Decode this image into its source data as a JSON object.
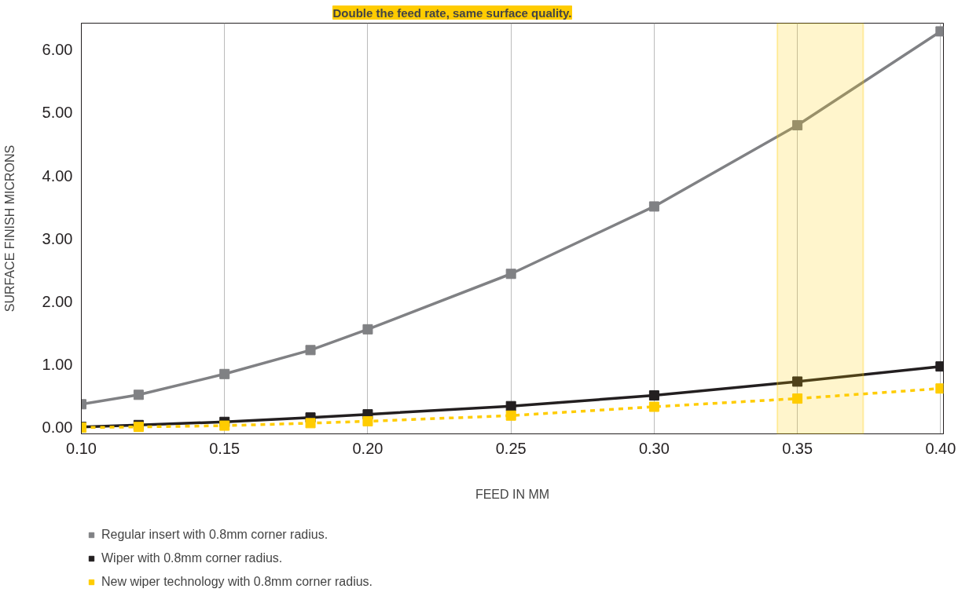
{
  "chart_data": {
    "type": "line",
    "xlabel": "FEED IN MM",
    "ylabel": "SURFACE FINISH MICRONS",
    "x": [
      0.1,
      0.12,
      0.15,
      0.18,
      0.2,
      0.25,
      0.3,
      0.35,
      0.4
    ],
    "series": [
      {
        "name": "Regular insert with 0.8mm corner radius.",
        "color": "#808184",
        "line_style": "solid",
        "values": [
          0.37,
          0.52,
          0.85,
          1.23,
          1.56,
          2.44,
          3.51,
          4.8,
          6.29
        ]
      },
      {
        "name": "Wiper with 0.8mm corner radius.",
        "color": "#231f20",
        "line_style": "solid",
        "values": [
          0.01,
          0.04,
          0.09,
          0.16,
          0.21,
          0.34,
          0.51,
          0.73,
          0.97
        ]
      },
      {
        "name": "New wiper technology with 0.8mm corner radius.",
        "color": "#ffcc00",
        "line_style": "dashed",
        "values": [
          0.0,
          0.01,
          0.03,
          0.07,
          0.1,
          0.19,
          0.33,
          0.46,
          0.62
        ]
      }
    ],
    "annotations": [
      "Double the feed rate, same surface quality."
    ],
    "bands": [
      {
        "axis": "x",
        "from": 0.343,
        "to": 0.373,
        "color": "#ffcc00"
      }
    ],
    "xlim": [
      0.1,
      0.401
    ],
    "ylim": [
      -0.1,
      6.42
    ],
    "xticks": [
      {
        "value": 0.1,
        "label": "0.10"
      },
      {
        "value": 0.15,
        "label": "0.15"
      },
      {
        "value": 0.2,
        "label": "0.20"
      },
      {
        "value": 0.25,
        "label": "0.25"
      },
      {
        "value": 0.3,
        "label": "0.30"
      },
      {
        "value": 0.35,
        "label": "0.35"
      },
      {
        "value": 0.4,
        "label": "0.40"
      }
    ],
    "yticks": [
      {
        "value": 0,
        "label": "0.00"
      },
      {
        "value": 1,
        "label": "1.00"
      },
      {
        "value": 2,
        "label": "2.00"
      },
      {
        "value": 3,
        "label": "3.00"
      },
      {
        "value": 4,
        "label": "4.00"
      },
      {
        "value": 5,
        "label": "5.00"
      },
      {
        "value": 6,
        "label": "6.00"
      }
    ],
    "grid": "x",
    "legend": "bottom",
    "marker": "square"
  }
}
